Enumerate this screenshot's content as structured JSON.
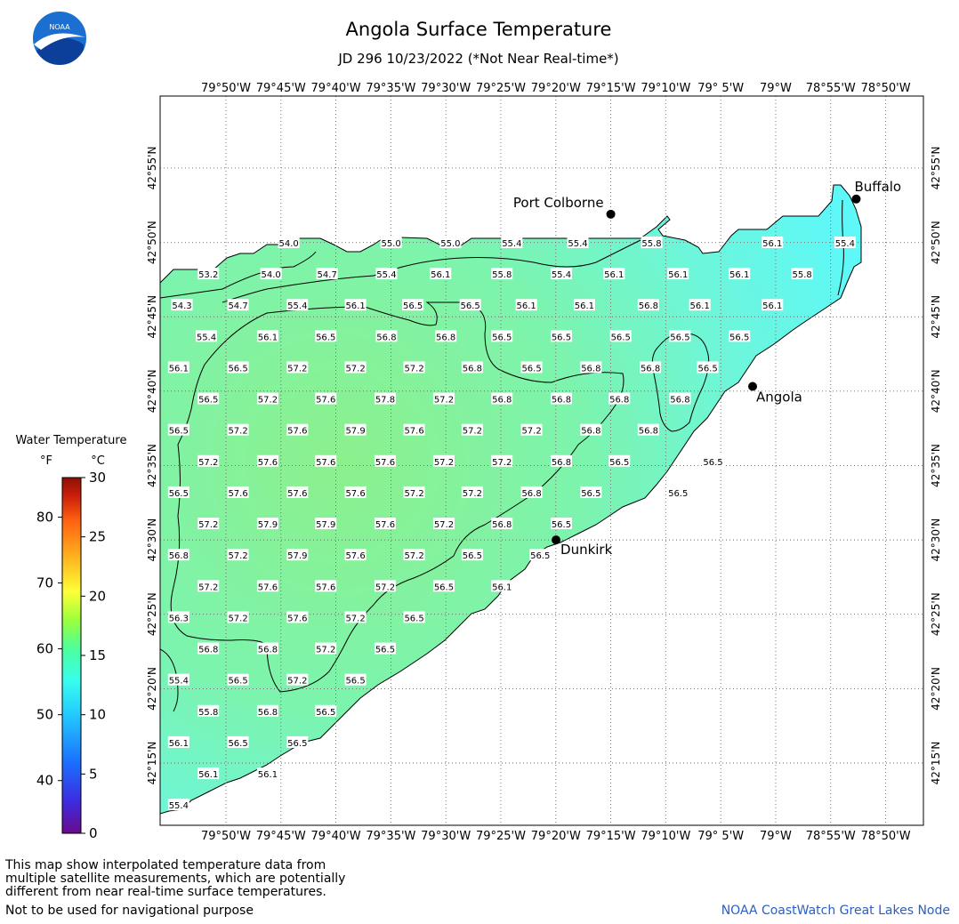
{
  "header": {
    "title": "Angola Surface Temperature",
    "subtitle": "JD 296 10/23/2022 (*Not Near Real-time*)",
    "logo_text": "NOAA"
  },
  "map": {
    "lon_labels": [
      "79°50'W",
      "79°45'W",
      "79°40'W",
      "79°35'W",
      "79°30'W",
      "79°25'W",
      "79°20'W",
      "79°15'W",
      "79°10'W",
      "79° 5'W",
      "79°W",
      "78°55'W",
      "78°50'W"
    ],
    "lat_labels": [
      "42°55'N",
      "42°50'N",
      "42°45'N",
      "42°40'N",
      "42°35'N",
      "42°30'N",
      "42°25'N",
      "42°20'N",
      "42°15'N"
    ],
    "colors": {
      "frame": "#000000",
      "grid": "#555555",
      "water_warm": "#8cf08c",
      "water_mid": "#7cf4ae",
      "water_cool": "#6cf6dc",
      "water_cold": "#5ef8f8"
    },
    "cities": [
      {
        "name": "Port Colborne",
        "lon": -79.25,
        "lat": 42.865
      },
      {
        "name": "Buffalo",
        "lon": -78.878,
        "lat": 42.882
      },
      {
        "name": "Angola",
        "lon": -79.035,
        "lat": 42.672
      },
      {
        "name": "Dunkirk",
        "lon": -79.333,
        "lat": 42.5
      }
    ],
    "temperatures": [
      {
        "lon": -79.738,
        "lat": 42.833,
        "v": "54.0"
      },
      {
        "lon": -79.583,
        "lat": 42.833,
        "v": "55.0"
      },
      {
        "lon": -79.493,
        "lat": 42.833,
        "v": "55.0"
      },
      {
        "lon": -79.4,
        "lat": 42.833,
        "v": "55.4"
      },
      {
        "lon": -79.3,
        "lat": 42.833,
        "v": "55.4"
      },
      {
        "lon": -79.188,
        "lat": 42.833,
        "v": "55.8"
      },
      {
        "lon": -79.005,
        "lat": 42.833,
        "v": "56.1"
      },
      {
        "lon": -78.895,
        "lat": 42.833,
        "v": "55.4"
      },
      {
        "lon": -79.86,
        "lat": 42.798,
        "v": "53.2"
      },
      {
        "lon": -79.765,
        "lat": 42.798,
        "v": "54.0"
      },
      {
        "lon": -79.68,
        "lat": 42.798,
        "v": "54.7"
      },
      {
        "lon": -79.59,
        "lat": 42.798,
        "v": "55.4"
      },
      {
        "lon": -79.508,
        "lat": 42.798,
        "v": "56.1"
      },
      {
        "lon": -79.415,
        "lat": 42.798,
        "v": "55.8"
      },
      {
        "lon": -79.325,
        "lat": 42.798,
        "v": "55.4"
      },
      {
        "lon": -79.245,
        "lat": 42.798,
        "v": "56.1"
      },
      {
        "lon": -79.148,
        "lat": 42.798,
        "v": "56.1"
      },
      {
        "lon": -79.055,
        "lat": 42.798,
        "v": "56.1"
      },
      {
        "lon": -78.96,
        "lat": 42.798,
        "v": "55.8"
      },
      {
        "lon": -79.9,
        "lat": 42.763,
        "v": "54.3"
      },
      {
        "lon": -79.815,
        "lat": 42.763,
        "v": "54.7"
      },
      {
        "lon": -79.725,
        "lat": 42.763,
        "v": "55.4"
      },
      {
        "lon": -79.637,
        "lat": 42.763,
        "v": "56.1"
      },
      {
        "lon": -79.55,
        "lat": 42.763,
        "v": "56.5"
      },
      {
        "lon": -79.463,
        "lat": 42.763,
        "v": "56.5"
      },
      {
        "lon": -79.378,
        "lat": 42.763,
        "v": "56.1"
      },
      {
        "lon": -79.29,
        "lat": 42.763,
        "v": "56.1"
      },
      {
        "lon": -79.193,
        "lat": 42.763,
        "v": "56.8"
      },
      {
        "lon": -79.115,
        "lat": 42.763,
        "v": "56.1"
      },
      {
        "lon": -79.005,
        "lat": 42.763,
        "v": "56.1"
      },
      {
        "lon": -79.863,
        "lat": 42.728,
        "v": "55.4"
      },
      {
        "lon": -79.77,
        "lat": 42.728,
        "v": "56.1"
      },
      {
        "lon": -79.682,
        "lat": 42.728,
        "v": "56.5"
      },
      {
        "lon": -79.59,
        "lat": 42.728,
        "v": "56.8"
      },
      {
        "lon": -79.5,
        "lat": 42.728,
        "v": "56.8"
      },
      {
        "lon": -79.415,
        "lat": 42.728,
        "v": "56.5"
      },
      {
        "lon": -79.325,
        "lat": 42.728,
        "v": "56.5"
      },
      {
        "lon": -79.235,
        "lat": 42.728,
        "v": "56.5"
      },
      {
        "lon": -79.145,
        "lat": 42.728,
        "v": "56.5"
      },
      {
        "lon": -79.055,
        "lat": 42.728,
        "v": "56.5"
      },
      {
        "lon": -79.905,
        "lat": 42.693,
        "v": "56.1"
      },
      {
        "lon": -79.815,
        "lat": 42.693,
        "v": "56.5"
      },
      {
        "lon": -79.725,
        "lat": 42.693,
        "v": "57.2"
      },
      {
        "lon": -79.637,
        "lat": 42.693,
        "v": "57.2"
      },
      {
        "lon": -79.548,
        "lat": 42.693,
        "v": "57.2"
      },
      {
        "lon": -79.46,
        "lat": 42.693,
        "v": "56.8"
      },
      {
        "lon": -79.37,
        "lat": 42.693,
        "v": "56.5"
      },
      {
        "lon": -79.28,
        "lat": 42.693,
        "v": "56.8"
      },
      {
        "lon": -79.19,
        "lat": 42.693,
        "v": "56.8"
      },
      {
        "lon": -79.103,
        "lat": 42.693,
        "v": "56.5"
      },
      {
        "lon": -79.86,
        "lat": 42.658,
        "v": "56.5"
      },
      {
        "lon": -79.77,
        "lat": 42.658,
        "v": "57.2"
      },
      {
        "lon": -79.682,
        "lat": 42.658,
        "v": "57.6"
      },
      {
        "lon": -79.592,
        "lat": 42.658,
        "v": "57.8"
      },
      {
        "lon": -79.503,
        "lat": 42.658,
        "v": "57.2"
      },
      {
        "lon": -79.415,
        "lat": 42.658,
        "v": "56.8"
      },
      {
        "lon": -79.325,
        "lat": 42.658,
        "v": "56.8"
      },
      {
        "lon": -79.237,
        "lat": 42.658,
        "v": "56.8"
      },
      {
        "lon": -79.145,
        "lat": 42.658,
        "v": "56.8"
      },
      {
        "lon": -79.905,
        "lat": 42.623,
        "v": "56.5"
      },
      {
        "lon": -79.815,
        "lat": 42.623,
        "v": "57.2"
      },
      {
        "lon": -79.725,
        "lat": 42.623,
        "v": "57.6"
      },
      {
        "lon": -79.637,
        "lat": 42.623,
        "v": "57.9"
      },
      {
        "lon": -79.548,
        "lat": 42.623,
        "v": "57.6"
      },
      {
        "lon": -79.46,
        "lat": 42.623,
        "v": "57.2"
      },
      {
        "lon": -79.37,
        "lat": 42.623,
        "v": "57.2"
      },
      {
        "lon": -79.28,
        "lat": 42.623,
        "v": "56.8"
      },
      {
        "lon": -79.193,
        "lat": 42.623,
        "v": "56.8"
      },
      {
        "lon": -79.86,
        "lat": 42.588,
        "v": "57.2"
      },
      {
        "lon": -79.77,
        "lat": 42.588,
        "v": "57.6"
      },
      {
        "lon": -79.682,
        "lat": 42.588,
        "v": "57.6"
      },
      {
        "lon": -79.592,
        "lat": 42.588,
        "v": "57.6"
      },
      {
        "lon": -79.503,
        "lat": 42.588,
        "v": "57.2"
      },
      {
        "lon": -79.415,
        "lat": 42.588,
        "v": "57.2"
      },
      {
        "lon": -79.325,
        "lat": 42.588,
        "v": "56.8"
      },
      {
        "lon": -79.237,
        "lat": 42.588,
        "v": "56.5"
      },
      {
        "lon": -79.095,
        "lat": 42.588,
        "v": "56.5"
      },
      {
        "lon": -79.905,
        "lat": 42.553,
        "v": "56.5"
      },
      {
        "lon": -79.815,
        "lat": 42.553,
        "v": "57.6"
      },
      {
        "lon": -79.725,
        "lat": 42.553,
        "v": "57.6"
      },
      {
        "lon": -79.637,
        "lat": 42.553,
        "v": "57.6"
      },
      {
        "lon": -79.548,
        "lat": 42.553,
        "v": "57.2"
      },
      {
        "lon": -79.46,
        "lat": 42.553,
        "v": "57.2"
      },
      {
        "lon": -79.37,
        "lat": 42.553,
        "v": "56.8"
      },
      {
        "lon": -79.28,
        "lat": 42.553,
        "v": "56.5"
      },
      {
        "lon": -79.148,
        "lat": 42.553,
        "v": "56.5"
      },
      {
        "lon": -79.86,
        "lat": 42.518,
        "v": "57.2"
      },
      {
        "lon": -79.77,
        "lat": 42.518,
        "v": "57.9"
      },
      {
        "lon": -79.682,
        "lat": 42.518,
        "v": "57.9"
      },
      {
        "lon": -79.592,
        "lat": 42.518,
        "v": "57.6"
      },
      {
        "lon": -79.503,
        "lat": 42.518,
        "v": "57.2"
      },
      {
        "lon": -79.415,
        "lat": 42.518,
        "v": "56.8"
      },
      {
        "lon": -79.325,
        "lat": 42.518,
        "v": "56.5"
      },
      {
        "lon": -79.905,
        "lat": 42.483,
        "v": "56.8"
      },
      {
        "lon": -79.815,
        "lat": 42.483,
        "v": "57.2"
      },
      {
        "lon": -79.725,
        "lat": 42.483,
        "v": "57.9"
      },
      {
        "lon": -79.637,
        "lat": 42.483,
        "v": "57.6"
      },
      {
        "lon": -79.548,
        "lat": 42.483,
        "v": "57.2"
      },
      {
        "lon": -79.46,
        "lat": 42.483,
        "v": "56.5"
      },
      {
        "lon": -79.357,
        "lat": 42.483,
        "v": "56.5"
      },
      {
        "lon": -79.86,
        "lat": 42.448,
        "v": "57.2"
      },
      {
        "lon": -79.77,
        "lat": 42.448,
        "v": "57.6"
      },
      {
        "lon": -79.682,
        "lat": 42.448,
        "v": "57.6"
      },
      {
        "lon": -79.592,
        "lat": 42.448,
        "v": "57.2"
      },
      {
        "lon": -79.503,
        "lat": 42.448,
        "v": "56.5"
      },
      {
        "lon": -79.415,
        "lat": 42.448,
        "v": "56.1"
      },
      {
        "lon": -79.905,
        "lat": 42.413,
        "v": "56.3"
      },
      {
        "lon": -79.815,
        "lat": 42.413,
        "v": "57.2"
      },
      {
        "lon": -79.725,
        "lat": 42.413,
        "v": "57.6"
      },
      {
        "lon": -79.637,
        "lat": 42.413,
        "v": "57.2"
      },
      {
        "lon": -79.548,
        "lat": 42.413,
        "v": "56.5"
      },
      {
        "lon": -79.86,
        "lat": 42.378,
        "v": "56.8"
      },
      {
        "lon": -79.77,
        "lat": 42.378,
        "v": "56.8"
      },
      {
        "lon": -79.682,
        "lat": 42.378,
        "v": "57.2"
      },
      {
        "lon": -79.592,
        "lat": 42.378,
        "v": "56.5"
      },
      {
        "lon": -79.905,
        "lat": 42.343,
        "v": "55.4"
      },
      {
        "lon": -79.815,
        "lat": 42.343,
        "v": "56.5"
      },
      {
        "lon": -79.725,
        "lat": 42.343,
        "v": "57.2"
      },
      {
        "lon": -79.637,
        "lat": 42.343,
        "v": "56.5"
      },
      {
        "lon": -79.86,
        "lat": 42.308,
        "v": "55.8"
      },
      {
        "lon": -79.77,
        "lat": 42.308,
        "v": "56.8"
      },
      {
        "lon": -79.682,
        "lat": 42.308,
        "v": "56.5"
      },
      {
        "lon": -79.905,
        "lat": 42.273,
        "v": "56.1"
      },
      {
        "lon": -79.815,
        "lat": 42.273,
        "v": "56.5"
      },
      {
        "lon": -79.725,
        "lat": 42.273,
        "v": "56.5"
      },
      {
        "lon": -79.86,
        "lat": 42.238,
        "v": "56.1"
      },
      {
        "lon": -79.77,
        "lat": 42.238,
        "v": "56.1"
      },
      {
        "lon": -79.905,
        "lat": 42.203,
        "v": "55.4"
      }
    ]
  },
  "legend": {
    "title": "Water Temperature",
    "unit_f": "°F",
    "unit_c": "°C",
    "f_ticks": [
      "80",
      "70",
      "60",
      "50",
      "40"
    ],
    "c_ticks": [
      "30",
      "25",
      "20",
      "15",
      "10",
      "5",
      "0"
    ],
    "colors": [
      "#6a0a8c",
      "#3c2ce0",
      "#1a70ff",
      "#22c8ff",
      "#38ffee",
      "#4cff9c",
      "#9cff3c",
      "#ffff36",
      "#ffb01e",
      "#ff6010",
      "#c81e0a",
      "#8c1205"
    ]
  },
  "footer": {
    "note_1": "This map show interpolated temperature data from",
    "note_2": "multiple satellite measurements, which are potentially",
    "note_3": "different from near real-time surface temperatures.",
    "note_4": "Not to be used for navigational purpose",
    "credit": "NOAA CoastWatch Great Lakes Node"
  }
}
